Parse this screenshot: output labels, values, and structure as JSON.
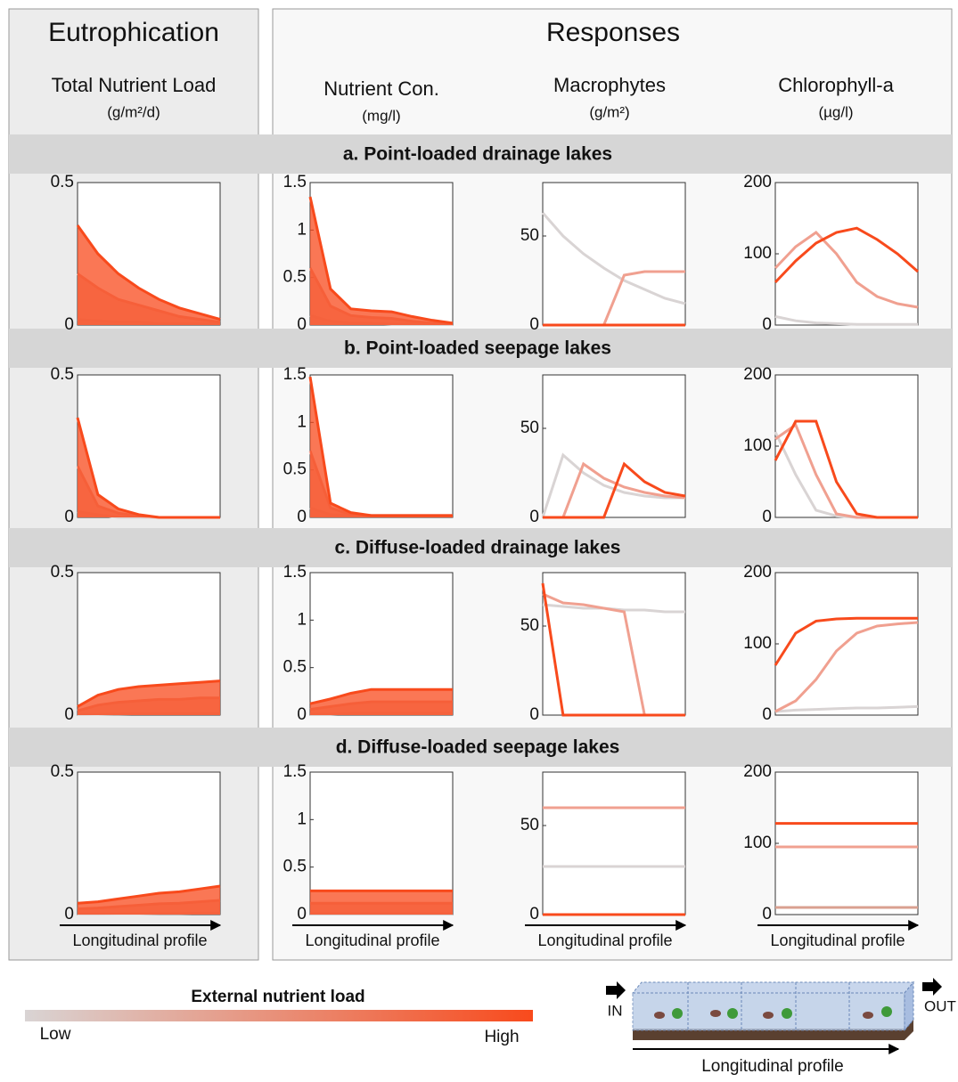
{
  "header": {
    "left_title": "Eutrophication",
    "right_title": "Responses"
  },
  "columns": [
    {
      "title": "Total Nutrient Load",
      "unit": "(g/m²/d)"
    },
    {
      "title": "Nutrient Con.",
      "unit": "(mg/l)"
    },
    {
      "title": "Macrophytes",
      "unit": "(g/m²)"
    },
    {
      "title": "Chlorophyll-a",
      "unit": "(µg/l)"
    }
  ],
  "rows": [
    {
      "title": "a. Point-loaded drainage lakes"
    },
    {
      "title": "b. Point-loaded seepage lakes"
    },
    {
      "title": "c. Diffuse-loaded drainage lakes"
    },
    {
      "title": "d. Diffuse-loaded seepage lakes"
    }
  ],
  "chart_data": [
    {
      "type": "area",
      "x": [
        0,
        1,
        2,
        3,
        4,
        5,
        6,
        7
      ],
      "xlim": [
        0,
        7
      ],
      "ylim": [
        0,
        0.5
      ],
      "yticks": [
        0,
        0.5
      ],
      "series": [
        {
          "color": "#d9d4d4",
          "values": [
            0.02,
            0.015,
            0.01,
            0.01,
            0.005,
            0.005,
            0.005,
            0.005
          ]
        },
        {
          "color": "#f0a090",
          "values": [
            0.18,
            0.13,
            0.09,
            0.07,
            0.05,
            0.03,
            0.02,
            0.01
          ]
        },
        {
          "color": "#f84a1c",
          "values": [
            0.35,
            0.25,
            0.18,
            0.13,
            0.09,
            0.06,
            0.04,
            0.02
          ]
        }
      ]
    },
    {
      "type": "area",
      "x": [
        0,
        1,
        2,
        3,
        4,
        5,
        6,
        7
      ],
      "xlim": [
        0,
        7
      ],
      "ylim": [
        0,
        1.5
      ],
      "yticks": [
        0,
        0.5,
        1,
        1.5
      ],
      "series": [
        {
          "color": "#d9d4d4",
          "values": [
            0.1,
            0.04,
            0.02,
            0.02,
            0.01,
            0.01,
            0.01,
            0.01
          ]
        },
        {
          "color": "#f0a090",
          "values": [
            0.6,
            0.2,
            0.1,
            0.08,
            0.07,
            0.04,
            0.02,
            0.01
          ]
        },
        {
          "color": "#f84a1c",
          "values": [
            1.35,
            0.38,
            0.17,
            0.15,
            0.14,
            0.09,
            0.05,
            0.02
          ]
        }
      ]
    },
    {
      "type": "line",
      "x": [
        0,
        1,
        2,
        3,
        4,
        5,
        6,
        7
      ],
      "xlim": [
        0,
        7
      ],
      "ylim": [
        0,
        80
      ],
      "yticks": [
        0,
        50
      ],
      "series": [
        {
          "color": "#d9d4d4",
          "values": [
            63,
            50,
            40,
            32,
            25,
            20,
            15,
            12
          ]
        },
        {
          "color": "#f0a090",
          "values": [
            0,
            0,
            0,
            0,
            28,
            30,
            30,
            30
          ]
        },
        {
          "color": "#f84a1c",
          "values": [
            0,
            0,
            0,
            0,
            0,
            0,
            0,
            0
          ]
        }
      ]
    },
    {
      "type": "line",
      "x": [
        0,
        1,
        2,
        3,
        4,
        5,
        6,
        7
      ],
      "xlim": [
        0,
        7
      ],
      "ylim": [
        0,
        200
      ],
      "yticks": [
        0,
        100,
        200
      ],
      "series": [
        {
          "color": "#d9d4d4",
          "values": [
            12,
            6,
            3,
            2,
            1,
            1,
            1,
            1
          ]
        },
        {
          "color": "#f0a090",
          "values": [
            80,
            110,
            130,
            100,
            60,
            40,
            30,
            25
          ]
        },
        {
          "color": "#f84a1c",
          "values": [
            60,
            90,
            115,
            130,
            136,
            120,
            100,
            75
          ]
        }
      ]
    },
    {
      "type": "area",
      "x": [
        0,
        1,
        2,
        3,
        4,
        5,
        6,
        7
      ],
      "xlim": [
        0,
        7
      ],
      "ylim": [
        0,
        0.5
      ],
      "yticks": [
        0,
        0.5
      ],
      "series": [
        {
          "color": "#d9d4d4",
          "values": [
            0.02,
            0.01,
            0,
            0,
            0,
            0,
            0,
            0
          ]
        },
        {
          "color": "#f0a090",
          "values": [
            0.18,
            0.04,
            0.015,
            0.005,
            0,
            0,
            0,
            0
          ]
        },
        {
          "color": "#f84a1c",
          "values": [
            0.35,
            0.08,
            0.03,
            0.01,
            0,
            0,
            0,
            0
          ]
        }
      ]
    },
    {
      "type": "area",
      "x": [
        0,
        1,
        2,
        3,
        4,
        5,
        6,
        7
      ],
      "xlim": [
        0,
        7
      ],
      "ylim": [
        0,
        1.5
      ],
      "yticks": [
        0,
        0.5,
        1,
        1.5
      ],
      "series": [
        {
          "color": "#d9d4d4",
          "values": [
            0.1,
            0.03,
            0.02,
            0.02,
            0.02,
            0.02,
            0.02,
            0.02
          ]
        },
        {
          "color": "#f0a090",
          "values": [
            0.7,
            0.1,
            0.03,
            0.02,
            0.02,
            0.02,
            0.02,
            0.02
          ]
        },
        {
          "color": "#f84a1c",
          "values": [
            1.48,
            0.15,
            0.05,
            0.02,
            0.02,
            0.02,
            0.02,
            0.02
          ]
        }
      ]
    },
    {
      "type": "line",
      "x": [
        0,
        1,
        2,
        3,
        4,
        5,
        6,
        7
      ],
      "xlim": [
        0,
        7
      ],
      "ylim": [
        0,
        80
      ],
      "yticks": [
        0,
        50
      ],
      "series": [
        {
          "color": "#d9d4d4",
          "values": [
            0,
            35,
            25,
            18,
            14,
            12,
            11,
            11
          ]
        },
        {
          "color": "#f0a090",
          "values": [
            0,
            0,
            30,
            22,
            17,
            14,
            12,
            11
          ]
        },
        {
          "color": "#f84a1c",
          "values": [
            0,
            0,
            0,
            0,
            30,
            20,
            14,
            12
          ]
        }
      ]
    },
    {
      "type": "line",
      "x": [
        0,
        1,
        2,
        3,
        4,
        5,
        6,
        7
      ],
      "xlim": [
        0,
        7
      ],
      "ylim": [
        0,
        200
      ],
      "yticks": [
        0,
        100,
        200
      ],
      "series": [
        {
          "color": "#d9d4d4",
          "values": [
            120,
            60,
            10,
            2,
            0,
            0,
            0,
            0
          ]
        },
        {
          "color": "#f0a090",
          "values": [
            110,
            130,
            60,
            5,
            0,
            0,
            0,
            0
          ]
        },
        {
          "color": "#f84a1c",
          "values": [
            80,
            135,
            135,
            50,
            5,
            0,
            0,
            0
          ]
        }
      ]
    },
    {
      "type": "area",
      "x": [
        0,
        1,
        2,
        3,
        4,
        5,
        6,
        7
      ],
      "xlim": [
        0,
        7
      ],
      "ylim": [
        0,
        0.5
      ],
      "yticks": [
        0,
        0.5
      ],
      "series": [
        {
          "color": "#d9d4d4",
          "values": [
            0.002,
            0.003,
            0.004,
            0.005,
            0.005,
            0.006,
            0.006,
            0.006
          ]
        },
        {
          "color": "#f0a090",
          "values": [
            0.015,
            0.035,
            0.045,
            0.05,
            0.055,
            0.055,
            0.06,
            0.06
          ]
        },
        {
          "color": "#f84a1c",
          "values": [
            0.03,
            0.07,
            0.09,
            0.1,
            0.105,
            0.11,
            0.115,
            0.12
          ]
        }
      ]
    },
    {
      "type": "area",
      "x": [
        0,
        1,
        2,
        3,
        4,
        5,
        6,
        7
      ],
      "xlim": [
        0,
        7
      ],
      "ylim": [
        0,
        1.5
      ],
      "yticks": [
        0,
        0.5,
        1,
        1.5
      ],
      "series": [
        {
          "color": "#d9d4d4",
          "values": [
            0.01,
            0.01,
            0.02,
            0.02,
            0.02,
            0.02,
            0.02,
            0.02
          ]
        },
        {
          "color": "#f0a090",
          "values": [
            0.06,
            0.09,
            0.12,
            0.14,
            0.14,
            0.14,
            0.14,
            0.14
          ]
        },
        {
          "color": "#f84a1c",
          "values": [
            0.12,
            0.17,
            0.23,
            0.27,
            0.27,
            0.27,
            0.27,
            0.27
          ]
        }
      ]
    },
    {
      "type": "line",
      "x": [
        0,
        1,
        2,
        3,
        4,
        5,
        6,
        7
      ],
      "xlim": [
        0,
        7
      ],
      "ylim": [
        0,
        80
      ],
      "yticks": [
        0,
        50
      ],
      "series": [
        {
          "color": "#d9d4d4",
          "values": [
            62,
            61,
            60,
            60,
            59,
            59,
            58,
            58
          ]
        },
        {
          "color": "#f0a090",
          "values": [
            68,
            63,
            62,
            60,
            58,
            0,
            0,
            0
          ]
        },
        {
          "color": "#f84a1c",
          "values": [
            74,
            0,
            0,
            0,
            0,
            0,
            0,
            0
          ]
        }
      ]
    },
    {
      "type": "line",
      "x": [
        0,
        1,
        2,
        3,
        4,
        5,
        6,
        7
      ],
      "xlim": [
        0,
        7
      ],
      "ylim": [
        0,
        200
      ],
      "yticks": [
        0,
        100,
        200
      ],
      "series": [
        {
          "color": "#d9d4d4",
          "values": [
            5,
            7,
            8,
            9,
            10,
            10,
            11,
            12
          ]
        },
        {
          "color": "#f0a090",
          "values": [
            5,
            20,
            50,
            90,
            115,
            125,
            128,
            130
          ]
        },
        {
          "color": "#f84a1c",
          "values": [
            70,
            115,
            132,
            135,
            136,
            136,
            136,
            136
          ]
        }
      ]
    },
    {
      "type": "area",
      "x": [
        0,
        1,
        2,
        3,
        4,
        5,
        6,
        7
      ],
      "xlim": [
        0,
        7
      ],
      "ylim": [
        0,
        0.5
      ],
      "yticks": [
        0,
        0.5
      ],
      "xlabel": "Longitudinal profile",
      "series": [
        {
          "color": "#d9d4d4",
          "values": [
            0.002,
            0.002,
            0.003,
            0.003,
            0.004,
            0.004,
            0.005,
            0.005
          ]
        },
        {
          "color": "#f0a090",
          "values": [
            0.02,
            0.023,
            0.028,
            0.033,
            0.038,
            0.04,
            0.045,
            0.05
          ]
        },
        {
          "color": "#f84a1c",
          "values": [
            0.04,
            0.045,
            0.055,
            0.065,
            0.075,
            0.08,
            0.09,
            0.1
          ]
        }
      ]
    },
    {
      "type": "area",
      "x": [
        0,
        1,
        2,
        3,
        4,
        5,
        6,
        7
      ],
      "xlim": [
        0,
        7
      ],
      "ylim": [
        0,
        1.5
      ],
      "yticks": [
        0,
        0.5,
        1,
        1.5
      ],
      "xlabel": "Longitudinal profile",
      "series": [
        {
          "color": "#d9d4d4",
          "values": [
            0.01,
            0.01,
            0.01,
            0.01,
            0.01,
            0.01,
            0.01,
            0.01
          ]
        },
        {
          "color": "#f0a090",
          "values": [
            0.12,
            0.12,
            0.12,
            0.12,
            0.12,
            0.12,
            0.12,
            0.12
          ]
        },
        {
          "color": "#f84a1c",
          "values": [
            0.25,
            0.25,
            0.25,
            0.25,
            0.25,
            0.25,
            0.25,
            0.25
          ]
        }
      ]
    },
    {
      "type": "line",
      "x": [
        0,
        1,
        2,
        3,
        4,
        5,
        6,
        7
      ],
      "xlim": [
        0,
        7
      ],
      "ylim": [
        0,
        80
      ],
      "yticks": [
        0,
        50
      ],
      "xlabel": "Longitudinal profile",
      "series": [
        {
          "color": "#d9d4d4",
          "values": [
            27,
            27,
            27,
            27,
            27,
            27,
            27,
            27
          ]
        },
        {
          "color": "#f0a090",
          "values": [
            60,
            60,
            60,
            60,
            60,
            60,
            60,
            60
          ]
        },
        {
          "color": "#f84a1c",
          "values": [
            0,
            0,
            0,
            0,
            0,
            0,
            0,
            0
          ]
        }
      ]
    },
    {
      "type": "line",
      "x": [
        0,
        1,
        2,
        3,
        4,
        5,
        6,
        7
      ],
      "xlim": [
        0,
        7
      ],
      "ylim": [
        0,
        200
      ],
      "yticks": [
        0,
        100,
        200
      ],
      "xlabel": "Longitudinal profile",
      "series": [
        {
          "color": "#d9a090",
          "values": [
            10,
            10,
            10,
            10,
            10,
            10,
            10,
            10
          ]
        },
        {
          "color": "#f0a090",
          "values": [
            95,
            95,
            95,
            95,
            95,
            95,
            95,
            95
          ]
        },
        {
          "color": "#f84a1c",
          "values": [
            128,
            128,
            128,
            128,
            128,
            128,
            128,
            128
          ]
        }
      ]
    }
  ],
  "legend": {
    "title": "External nutrient load",
    "low": "Low",
    "high": "High",
    "colors": [
      "#d9d4d4",
      "#f84a1c"
    ]
  },
  "diagram": {
    "in": "IN",
    "out": "OUT",
    "axis_label": "Longitudinal profile"
  }
}
